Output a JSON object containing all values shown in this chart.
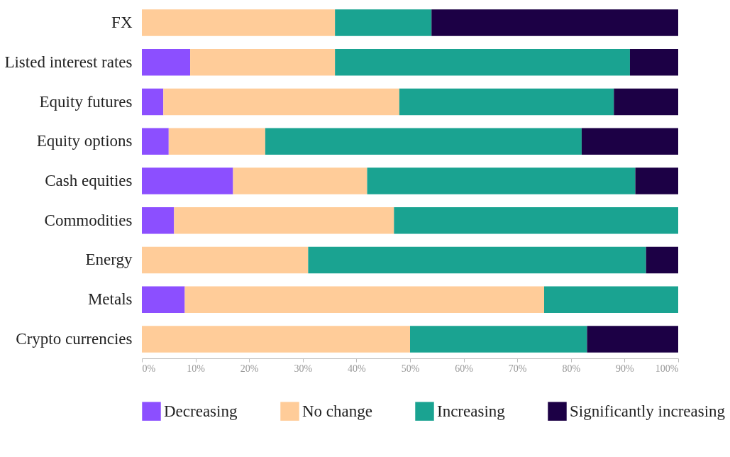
{
  "chart_data": {
    "type": "bar",
    "orientation": "horizontal",
    "stacked": true,
    "categories": [
      "FX",
      "Listed interest rates",
      "Equity futures",
      "Equity options",
      "Cash equities",
      "Commodities",
      "Energy",
      "Metals",
      "Crypto currencies"
    ],
    "series": [
      {
        "name": "Decreasing",
        "color": "#8c4fff",
        "values": [
          0,
          9,
          4,
          5,
          17,
          6,
          0,
          8,
          0
        ]
      },
      {
        "name": "No change",
        "color": "#ffcc99",
        "values": [
          36,
          27,
          44,
          18,
          25,
          41,
          31,
          67,
          50
        ]
      },
      {
        "name": "Increasing",
        "color": "#1aa391",
        "values": [
          18,
          55,
          40,
          59,
          50,
          53,
          63,
          25,
          33
        ]
      },
      {
        "name": "Significantly increasing",
        "color": "#1c0045",
        "values": [
          46,
          9,
          12,
          18,
          8,
          0,
          6,
          0,
          17
        ]
      }
    ],
    "xlim": [
      0,
      100
    ],
    "xticks": [
      {
        "value": 0,
        "label": "0%"
      },
      {
        "value": 10,
        "label": "10%"
      },
      {
        "value": 20,
        "label": "20%"
      },
      {
        "value": 30,
        "label": "30%"
      },
      {
        "value": 40,
        "label": "40%"
      },
      {
        "value": 50,
        "label": "50%"
      },
      {
        "value": 60,
        "label": "60%"
      },
      {
        "value": 70,
        "label": "70%"
      },
      {
        "value": 80,
        "label": "80%"
      },
      {
        "value": 90,
        "label": "90%"
      },
      {
        "value": 100,
        "label": "100%"
      }
    ],
    "grid": false,
    "legend": "bottom"
  }
}
